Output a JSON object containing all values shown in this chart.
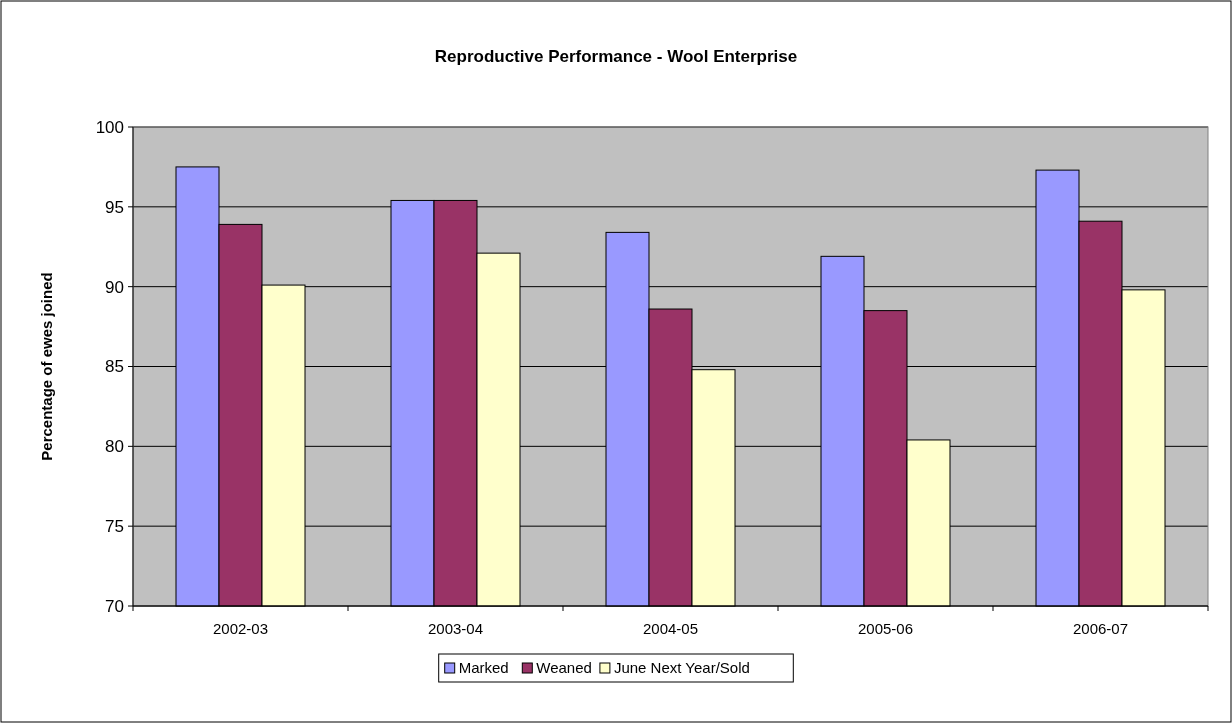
{
  "chart_data": {
    "type": "bar",
    "title": "Reproductive Performance - Wool Enterprise",
    "ylabel": "Percentage of ewes joined",
    "categories": [
      "2002-03",
      "2003-04",
      "2004-05",
      "2005-06",
      "2006-07"
    ],
    "series": [
      {
        "name": "Marked",
        "color": "#9999ff",
        "values": [
          97.5,
          95.4,
          93.4,
          91.9,
          97.3
        ]
      },
      {
        "name": "Weaned",
        "color": "#993366",
        "values": [
          93.9,
          95.4,
          88.6,
          88.5,
          94.1
        ]
      },
      {
        "name": "June Next Year/Sold",
        "color": "#ffffcc",
        "values": [
          90.1,
          92.1,
          84.8,
          80.4,
          89.8
        ]
      }
    ],
    "ylim": [
      70,
      100
    ],
    "yticks": [
      70,
      75,
      80,
      85,
      90,
      95,
      100
    ],
    "grid": "y",
    "legend": "bottom"
  }
}
